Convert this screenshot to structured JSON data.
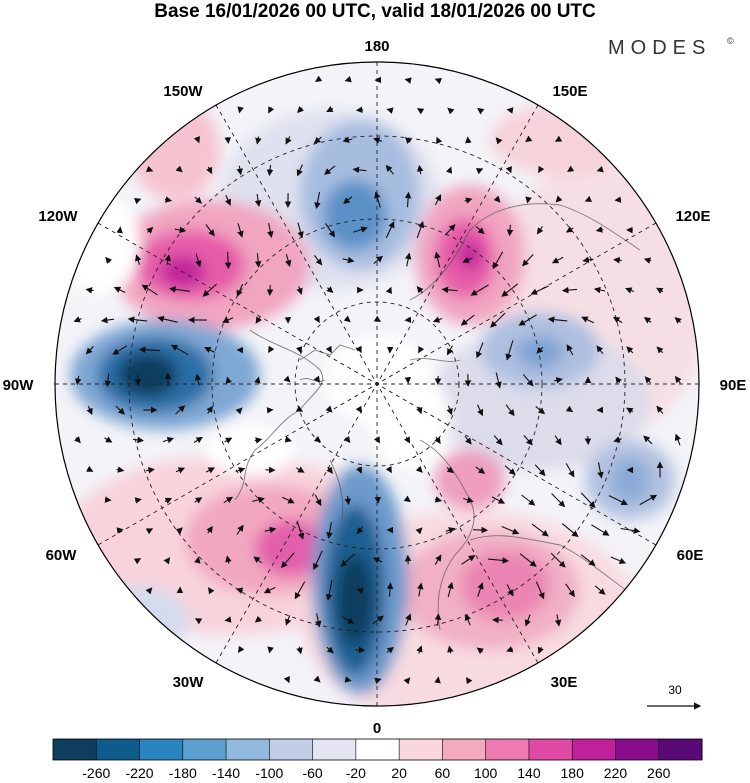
{
  "title": "Base 16/01/2026 00 UTC, valid 18/01/2026 00 UTC",
  "brand": "MODES",
  "brand_mark": "©",
  "longitude_labels": {
    "lon_180": "180",
    "lon_150w": "150W",
    "lon_150e": "150E",
    "lon_120w": "120W",
    "lon_120e": "120E",
    "lon_90w": "90W",
    "lon_90e": "90E",
    "lon_60w": "60W",
    "lon_60e": "60E",
    "lon_30w": "30W",
    "lon_30e": "30E",
    "lon_0": "0"
  },
  "reference_vector": {
    "label": "30"
  },
  "colorbar": {
    "tick_labels": [
      "-260",
      "-220",
      "-180",
      "-140",
      "-100",
      "-60",
      "-20",
      "20",
      "60",
      "100",
      "140",
      "180",
      "220",
      "260"
    ],
    "colors": [
      "#0e3d5e",
      "#0e5c8c",
      "#2a84bf",
      "#5a9fd0",
      "#92b9de",
      "#c2cde6",
      "#e5e5f2",
      "#ffffff",
      "#fad7dc",
      "#f4aabd",
      "#ed7ab0",
      "#e04aa5",
      "#c0209a",
      "#8a0c8e",
      "#5a0a76"
    ]
  },
  "colors": {
    "graticule": "#222222",
    "coast": "#555555",
    "arrow": "#111111"
  }
}
